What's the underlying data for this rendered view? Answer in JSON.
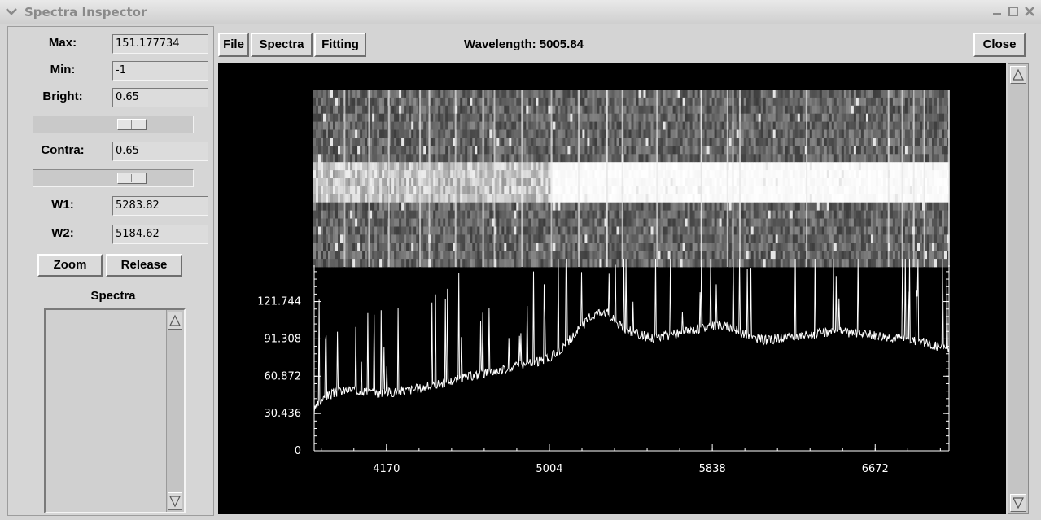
{
  "window": {
    "title": "Spectra Inspector"
  },
  "left": {
    "max_label": "Max:",
    "max_value": "151.177734",
    "min_label": "Min:",
    "min_value": "-1",
    "bright_label": "Bright:",
    "bright_value": "0.65",
    "bright_slider_level": 0.65,
    "contra_label": "Contra:",
    "contra_value": "0.65",
    "contra_slider_level": 0.65,
    "w1_label": "W1:",
    "w1_value": "5283.82",
    "w2_label": "W2:",
    "w2_value": "5184.62",
    "zoom_label": "Zoom",
    "release_label": "Release",
    "spectra_list_label": "Spectra"
  },
  "toolbar": {
    "file_label": "File",
    "spectra_label": "Spectra",
    "fitting_label": "Fitting",
    "wavelength_text": "Wavelength: 5005.84",
    "close_label": "Close"
  },
  "chart_data": {
    "type": "line",
    "title": "",
    "xlabel": "",
    "ylabel": "",
    "x_ticks": [
      "4170",
      "5004",
      "5838",
      "6672"
    ],
    "y_ticks": [
      "0",
      "30.436",
      "60.872",
      "91.308",
      "121.744"
    ],
    "xlim": [
      3800,
      7050
    ],
    "ylim": [
      0,
      150
    ],
    "grid": false,
    "line_color": "#ffffff",
    "background": "#000000",
    "series": [
      {
        "x": [
          3800,
          3830,
          3870,
          3920,
          3980,
          4050,
          4130,
          4200,
          4300,
          4400,
          4500,
          4600,
          4700,
          4800,
          4900,
          5000,
          5080,
          5150,
          5220,
          5280,
          5330,
          5380,
          5440,
          5520,
          5620,
          5700,
          5780,
          5860,
          5950,
          6040,
          6120,
          6200,
          6300,
          6400,
          6500,
          6600,
          6700,
          6800,
          6900,
          6980,
          7050
        ],
        "values": [
          32,
          40,
          45,
          48,
          50,
          49,
          47,
          48,
          50,
          53,
          57,
          61,
          64,
          68,
          71,
          75,
          85,
          98,
          110,
          115,
          108,
          100,
          96,
          92,
          94,
          97,
          100,
          103,
          100,
          92,
          90,
          92,
          94,
          96,
          97,
          95,
          94,
          92,
          89,
          86,
          83
        ]
      }
    ]
  }
}
